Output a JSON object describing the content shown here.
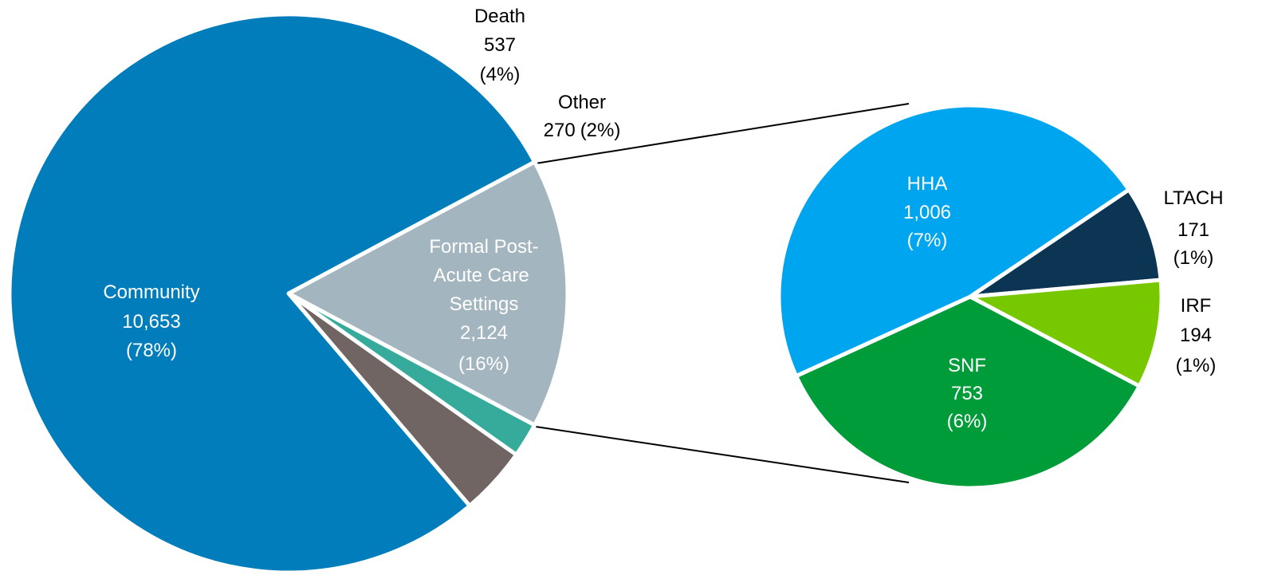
{
  "chart_data": {
    "type": "pie-of-pie",
    "categories": [
      "Community",
      "Death",
      "Other",
      "Formal Post-Acute Care Settings"
    ],
    "values": [
      10653,
      537,
      270,
      2124
    ],
    "value_labels": [
      "10,653",
      "537",
      "270",
      "2,124"
    ],
    "percent_labels": [
      "(78%)",
      "(4%)",
      "(2%)",
      "(16%)"
    ],
    "colors": [
      "#007dba",
      "#706563",
      "#36ab9b",
      "#a3b5bf"
    ],
    "secondary": {
      "categories": [
        "LTACH",
        "IRF",
        "SNF",
        "HHA"
      ],
      "values": [
        171,
        194,
        753,
        1006
      ],
      "value_labels": [
        "171",
        "194",
        "753",
        "1,006"
      ],
      "percent_labels": [
        "(1%)",
        "(1%)",
        "(6%)",
        "(7%)"
      ],
      "colors": [
        "#0b3553",
        "#78c800",
        "#009c3a",
        "#00a5ef"
      ]
    }
  }
}
